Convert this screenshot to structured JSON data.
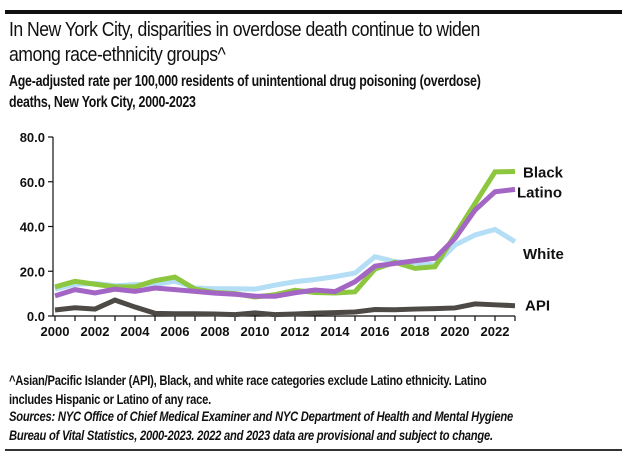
{
  "header": {
    "title_line1": "In New York City, disparities in overdose death continue to widen",
    "title_line2": "among race-ethnicity groups^",
    "subtitle_line1": "Age-adjusted rate per 100,000 residents of unintentional drug poisoning (overdose)",
    "subtitle_line2": "deaths, New York City, 2000-2023"
  },
  "footer": {
    "note_line1": "^Asian/Pacific Islander (API), Black, and white race categories exclude Latino ethnicity. Latino",
    "note_line2": "includes Hispanic or Latino of any race.",
    "source_line1": "Sources: NYC Office of Chief Medical Examiner and NYC Department of Health and Mental Hygiene",
    "source_line2": "Bureau of Vital Statistics, 2000-2023. 2022 and 2023 data are provisional and subject to change."
  },
  "chart_data": {
    "type": "line",
    "title": "In New York City, disparities in overdose death continue to widen among race-ethnicity groups^",
    "subtitle": "Age-adjusted rate per 100,000 residents of unintentional drug poisoning (overdose) deaths, New York City, 2000-2023",
    "xlabel": "",
    "ylabel": "",
    "x": [
      2000,
      2001,
      2002,
      2003,
      2004,
      2005,
      2006,
      2007,
      2008,
      2009,
      2010,
      2011,
      2012,
      2013,
      2014,
      2015,
      2016,
      2017,
      2018,
      2019,
      2020,
      2021,
      2022,
      2023
    ],
    "x_tick_labels": [
      "2000",
      "2002",
      "2004",
      "2006",
      "2008",
      "2010",
      "2012",
      "2014",
      "2016",
      "2018",
      "2020",
      "2022"
    ],
    "ylim": [
      0,
      80
    ],
    "y_ticks": [
      "0.0",
      "20.0",
      "40.0",
      "60.0",
      "80.0"
    ],
    "grid": false,
    "legend": "direct labels at right end of lines",
    "series": [
      {
        "name": "Black",
        "color": "#8DC63F",
        "values": [
          13.0,
          15.5,
          14.2,
          13.0,
          13.0,
          15.8,
          17.4,
          12.0,
          10.5,
          10.0,
          8.5,
          9.5,
          11.5,
          10.5,
          10.3,
          10.8,
          21.0,
          24.0,
          21.3,
          22.0,
          36.2,
          50.3,
          64.4,
          64.6
        ]
      },
      {
        "name": "Latino",
        "color": "#A366C4",
        "values": [
          9.0,
          11.8,
          10.3,
          12.0,
          11.0,
          12.5,
          11.8,
          11.0,
          10.2,
          9.7,
          8.9,
          8.8,
          10.4,
          11.6,
          10.9,
          15.3,
          22.3,
          23.5,
          24.7,
          25.8,
          34.7,
          47.3,
          55.5,
          56.6
        ]
      },
      {
        "name": "White",
        "color": "#B3DEF5",
        "values": [
          12.0,
          14.2,
          14.5,
          13.5,
          14.0,
          14.0,
          15.6,
          12.5,
          12.2,
          12.2,
          12.0,
          13.8,
          15.3,
          16.3,
          17.6,
          19.2,
          26.5,
          24.3,
          23.8,
          22.8,
          31.7,
          36.2,
          38.7,
          33.2
        ]
      },
      {
        "name": "API",
        "color": "#4D4A45",
        "values": [
          2.7,
          3.7,
          3.1,
          7.1,
          4.0,
          1.2,
          1.0,
          1.0,
          0.9,
          0.6,
          1.4,
          0.6,
          0.9,
          1.3,
          1.5,
          1.8,
          2.9,
          2.8,
          3.1,
          3.3,
          3.6,
          5.4,
          5.0,
          4.6
        ]
      }
    ]
  }
}
